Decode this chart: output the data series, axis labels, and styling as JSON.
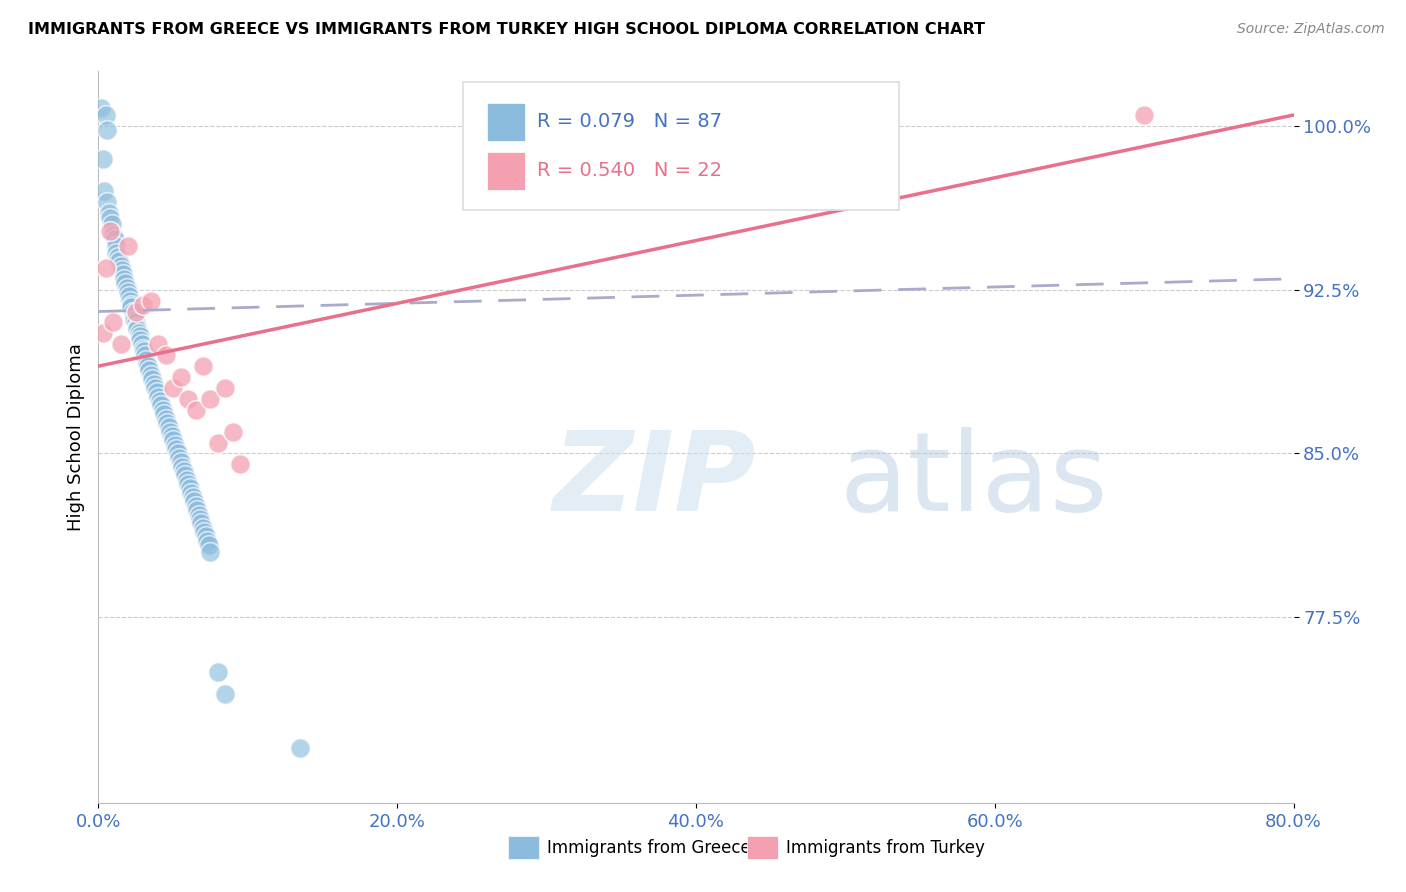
{
  "title": "IMMIGRANTS FROM GREECE VS IMMIGRANTS FROM TURKEY HIGH SCHOOL DIPLOMA CORRELATION CHART",
  "source": "Source: ZipAtlas.com",
  "ylabel": "High School Diploma",
  "x_tick_labels": [
    "0.0%",
    "20.0%",
    "40.0%",
    "60.0%",
    "80.0%"
  ],
  "x_tick_vals": [
    0.0,
    20.0,
    40.0,
    60.0,
    80.0
  ],
  "y_tick_labels": [
    "77.5%",
    "85.0%",
    "92.5%",
    "100.0%"
  ],
  "y_tick_vals": [
    77.5,
    85.0,
    92.5,
    100.0
  ],
  "xlim": [
    0.0,
    80.0
  ],
  "ylim": [
    69.0,
    102.5
  ],
  "legend_greece": "Immigrants from Greece",
  "legend_turkey": "Immigrants from Turkey",
  "R_greece": 0.079,
  "N_greece": 87,
  "R_turkey": 0.54,
  "N_turkey": 22,
  "greece_color": "#8BBCDE",
  "turkey_color": "#F4A0B0",
  "greece_line_color": "#AAAACC",
  "turkey_line_color": "#E8708A",
  "watermark_zip": "ZIP",
  "watermark_atlas": "atlas",
  "greece_scatter_x": [
    0.15,
    0.5,
    0.55,
    0.3,
    0.4,
    0.6,
    0.7,
    0.8,
    0.9,
    1.0,
    1.1,
    1.15,
    1.2,
    1.3,
    1.4,
    1.5,
    1.6,
    1.65,
    1.7,
    1.8,
    1.9,
    2.0,
    2.05,
    2.1,
    2.15,
    2.2,
    2.3,
    2.35,
    2.4,
    2.5,
    2.55,
    2.6,
    2.7,
    2.75,
    2.8,
    2.9,
    3.0,
    3.05,
    3.1,
    3.2,
    3.25,
    3.3,
    3.4,
    3.5,
    3.6,
    3.7,
    3.8,
    3.9,
    4.0,
    4.1,
    4.2,
    4.3,
    4.4,
    4.5,
    4.6,
    4.7,
    4.8,
    4.9,
    5.0,
    5.1,
    5.2,
    5.3,
    5.4,
    5.5,
    5.6,
    5.7,
    5.8,
    5.9,
    6.0,
    6.1,
    6.2,
    6.3,
    6.4,
    6.5,
    6.6,
    6.7,
    6.8,
    6.9,
    7.0,
    7.1,
    7.2,
    7.3,
    7.4,
    7.5,
    8.0,
    8.5,
    13.5
  ],
  "greece_scatter_y": [
    100.8,
    100.5,
    99.8,
    98.5,
    97.0,
    96.5,
    96.0,
    95.8,
    95.5,
    95.0,
    94.8,
    94.5,
    94.2,
    94.0,
    93.8,
    93.6,
    93.4,
    93.2,
    93.0,
    92.8,
    92.6,
    92.4,
    92.2,
    92.0,
    91.8,
    91.7,
    91.5,
    91.3,
    91.1,
    91.0,
    90.8,
    90.7,
    90.5,
    90.4,
    90.2,
    90.0,
    89.8,
    89.7,
    89.5,
    89.3,
    89.1,
    89.0,
    88.8,
    88.6,
    88.4,
    88.2,
    88.0,
    87.8,
    87.6,
    87.4,
    87.2,
    87.0,
    86.8,
    86.6,
    86.4,
    86.2,
    86.0,
    85.8,
    85.6,
    85.4,
    85.2,
    85.0,
    84.8,
    84.6,
    84.4,
    84.2,
    84.0,
    83.8,
    83.6,
    83.4,
    83.2,
    83.0,
    82.8,
    82.6,
    82.4,
    82.2,
    82.0,
    81.8,
    81.6,
    81.4,
    81.2,
    81.0,
    80.8,
    80.5,
    75.0,
    74.0,
    71.5
  ],
  "turkey_scatter_x": [
    0.3,
    0.5,
    0.8,
    1.0,
    1.5,
    2.0,
    2.5,
    3.0,
    3.5,
    4.0,
    4.5,
    5.0,
    5.5,
    6.0,
    6.5,
    7.0,
    7.5,
    8.0,
    8.5,
    9.0,
    9.5,
    70.0
  ],
  "turkey_scatter_y": [
    90.5,
    93.5,
    95.2,
    91.0,
    90.0,
    94.5,
    91.5,
    91.8,
    92.0,
    90.0,
    89.5,
    88.0,
    88.5,
    87.5,
    87.0,
    89.0,
    87.5,
    85.5,
    88.0,
    86.0,
    84.5,
    100.5
  ],
  "greece_line_x0": 0.0,
  "greece_line_x1": 80.0,
  "greece_line_y0": 91.5,
  "greece_line_y1": 93.0,
  "turkey_line_x0": 0.0,
  "turkey_line_x1": 80.0,
  "turkey_line_y0": 89.0,
  "turkey_line_y1": 100.5
}
